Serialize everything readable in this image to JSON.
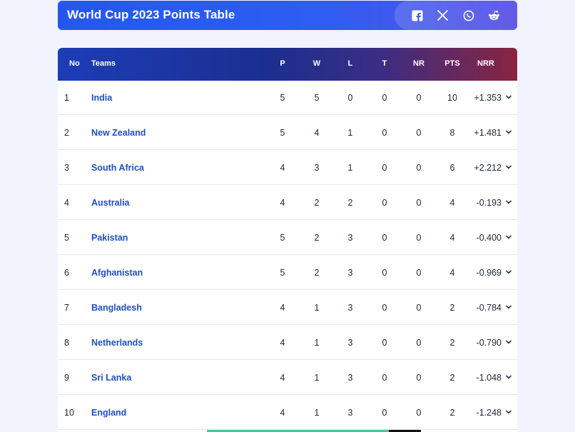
{
  "header": {
    "title": "World Cup 2023 Points Table",
    "share": [
      {
        "icon": "facebook-icon"
      },
      {
        "icon": "x-icon"
      },
      {
        "icon": "whatsapp-icon"
      },
      {
        "icon": "reddit-icon"
      }
    ]
  },
  "table": {
    "columns": {
      "no": "No",
      "team": "Teams",
      "p": "P",
      "w": "W",
      "l": "L",
      "t": "T",
      "nr": "NR",
      "pts": "PTS",
      "nrr": "NRR"
    },
    "rows": [
      {
        "no": "1",
        "team": "India",
        "p": "5",
        "w": "5",
        "l": "0",
        "t": "0",
        "nr": "0",
        "pts": "10",
        "nrr": "+1.353"
      },
      {
        "no": "2",
        "team": "New Zealand",
        "p": "5",
        "w": "4",
        "l": "1",
        "t": "0",
        "nr": "0",
        "pts": "8",
        "nrr": "+1.481"
      },
      {
        "no": "3",
        "team": "South Africa",
        "p": "4",
        "w": "3",
        "l": "1",
        "t": "0",
        "nr": "0",
        "pts": "6",
        "nrr": "+2.212"
      },
      {
        "no": "4",
        "team": "Australia",
        "p": "4",
        "w": "2",
        "l": "2",
        "t": "0",
        "nr": "0",
        "pts": "4",
        "nrr": "-0.193"
      },
      {
        "no": "5",
        "team": "Pakistan",
        "p": "5",
        "w": "2",
        "l": "3",
        "t": "0",
        "nr": "0",
        "pts": "4",
        "nrr": "-0.400"
      },
      {
        "no": "6",
        "team": "Afghanistan",
        "p": "5",
        "w": "2",
        "l": "3",
        "t": "0",
        "nr": "0",
        "pts": "4",
        "nrr": "-0.969"
      },
      {
        "no": "7",
        "team": "Bangladesh",
        "p": "4",
        "w": "1",
        "l": "3",
        "t": "0",
        "nr": "0",
        "pts": "2",
        "nrr": "-0.784"
      },
      {
        "no": "8",
        "team": "Netherlands",
        "p": "4",
        "w": "1",
        "l": "3",
        "t": "0",
        "nr": "0",
        "pts": "2",
        "nrr": "-0.790"
      },
      {
        "no": "9",
        "team": "Sri Lanka",
        "p": "4",
        "w": "1",
        "l": "3",
        "t": "0",
        "nr": "0",
        "pts": "2",
        "nrr": "-1.048"
      },
      {
        "no": "10",
        "team": "England",
        "p": "4",
        "w": "1",
        "l": "3",
        "t": "0",
        "nr": "0",
        "pts": "2",
        "nrr": "-1.248"
      }
    ]
  },
  "colors": {
    "header_gradient_start": "#2557f0",
    "header_gradient_end": "#5a52e6",
    "table_head_start": "#1c3db8",
    "table_head_end": "#8a2440",
    "team_link": "#1e4fc8"
  }
}
